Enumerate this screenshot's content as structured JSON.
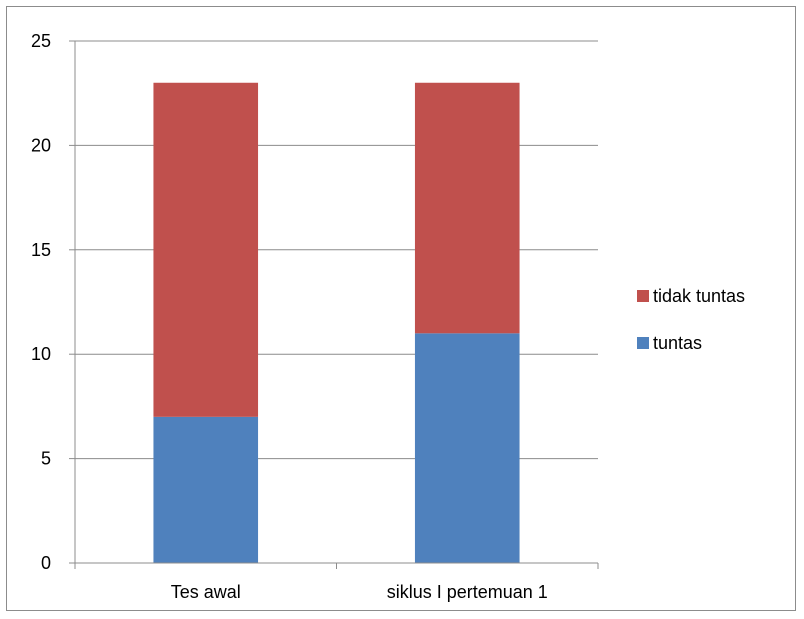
{
  "chart_data": {
    "type": "bar",
    "stacked": true,
    "categories": [
      "Tes awal",
      "siklus I pertemuan 1"
    ],
    "series": [
      {
        "name": "tuntas",
        "values": [
          7,
          11
        ],
        "color": "#4f81bd"
      },
      {
        "name": "tidak tuntas",
        "values": [
          16,
          12
        ],
        "color": "#c0504d"
      }
    ],
    "ylim": [
      0,
      25
    ],
    "yticks": [
      0,
      5,
      10,
      15,
      20,
      25
    ],
    "title": "",
    "xlabel": "",
    "ylabel": "",
    "grid": true,
    "legend_position": "right",
    "legend_order": [
      "tidak tuntas",
      "tuntas"
    ]
  }
}
